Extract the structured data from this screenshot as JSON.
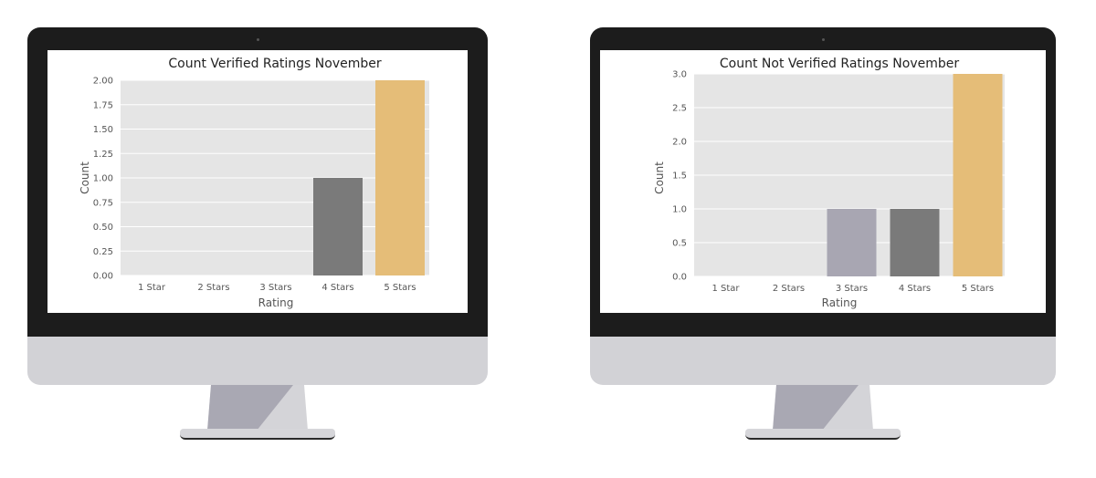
{
  "colors": {
    "plot_bg": "#e5e5e5",
    "grid": "#ffffff",
    "bezel": "#1c1c1c",
    "chin": "#d2d2d6",
    "stand_dark": "#a9a8b3",
    "stand_light": "#d4d4d8",
    "bar_gray": "#7a7a7a",
    "bar_lavender": "#a8a6b2",
    "bar_gold": "#e5bd78"
  },
  "charts": [
    {
      "title": "Count Verified Ratings November",
      "ylabel": "Count",
      "xlabel": "Rating"
    },
    {
      "title": "Count Not Verified Ratings November",
      "ylabel": "Count",
      "xlabel": "Rating"
    }
  ],
  "chart_data": [
    {
      "type": "bar",
      "title": "Count Verified Ratings November",
      "xlabel": "Rating",
      "ylabel": "Count",
      "categories": [
        "1 Star",
        "2 Stars",
        "3 Stars",
        "4 Stars",
        "5 Stars"
      ],
      "values": [
        0,
        0,
        0,
        1,
        2
      ],
      "bar_colors": [
        "#a8a6b2",
        "#a8a6b2",
        "#a8a6b2",
        "#7a7a7a",
        "#e5bd78"
      ],
      "ylim": [
        0,
        2.0
      ],
      "yticks": [
        0.0,
        0.25,
        0.5,
        0.75,
        1.0,
        1.25,
        1.5,
        1.75,
        2.0
      ],
      "ytick_labels": [
        "0.00",
        "0.25",
        "0.50",
        "0.75",
        "1.00",
        "1.25",
        "1.50",
        "1.75",
        "2.00"
      ],
      "grid": true
    },
    {
      "type": "bar",
      "title": "Count Not Verified Ratings November",
      "xlabel": "Rating",
      "ylabel": "Count",
      "categories": [
        "1 Star",
        "2 Stars",
        "3 Stars",
        "4 Stars",
        "5 Stars"
      ],
      "values": [
        0,
        0,
        1,
        1,
        3
      ],
      "bar_colors": [
        "#a8a6b2",
        "#a8a6b2",
        "#a8a6b2",
        "#7a7a7a",
        "#e5bd78"
      ],
      "ylim": [
        0,
        3.0
      ],
      "yticks": [
        0.0,
        0.5,
        1.0,
        1.5,
        2.0,
        2.5,
        3.0
      ],
      "ytick_labels": [
        "0.0",
        "0.5",
        "1.0",
        "1.5",
        "2.0",
        "2.5",
        "3.0"
      ],
      "grid": true
    }
  ]
}
